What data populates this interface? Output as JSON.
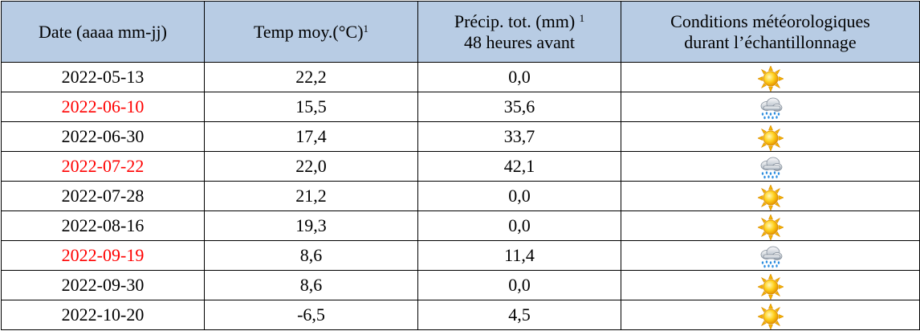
{
  "table": {
    "headers": {
      "date": "Date (aaaa mm-jj)",
      "temp": "Temp moy.(°C)",
      "temp_note": "1",
      "precip_line1": "Précip. tot. (mm)",
      "precip_note": "1",
      "precip_line2": "48 heures avant",
      "cond_line1": "Conditions météorologiques",
      "cond_line2": "durant l’échantillonnage"
    },
    "header_color": "#b8cce4",
    "highlight_color": "#ff0000",
    "rows": [
      {
        "date": "2022-05-13",
        "highlight": false,
        "temp": "22,2",
        "precip": "0,0",
        "condition": "sun-icon"
      },
      {
        "date": "2022-06-10",
        "highlight": true,
        "temp": "15,5",
        "precip": "35,6",
        "condition": "rain-cloud-icon"
      },
      {
        "date": "2022-06-30",
        "highlight": false,
        "temp": "17,4",
        "precip": "33,7",
        "condition": "sun-icon"
      },
      {
        "date": "2022-07-22",
        "highlight": true,
        "temp": "22,0",
        "precip": "42,1",
        "condition": "rain-cloud-icon"
      },
      {
        "date": "2022-07-28",
        "highlight": false,
        "temp": "21,2",
        "precip": "0,0",
        "condition": "sun-icon"
      },
      {
        "date": "2022-08-16",
        "highlight": false,
        "temp": "19,3",
        "precip": "0,0",
        "condition": "sun-icon"
      },
      {
        "date": "2022-09-19",
        "highlight": true,
        "temp": "8,6",
        "precip": "11,4",
        "condition": "rain-cloud-icon"
      },
      {
        "date": "2022-09-30",
        "highlight": false,
        "temp": "8,6",
        "precip": "0,0",
        "condition": "sun-icon"
      },
      {
        "date": "2022-10-20",
        "highlight": false,
        "temp": "-6,5",
        "precip": "4,5",
        "condition": "sun-icon"
      }
    ]
  }
}
